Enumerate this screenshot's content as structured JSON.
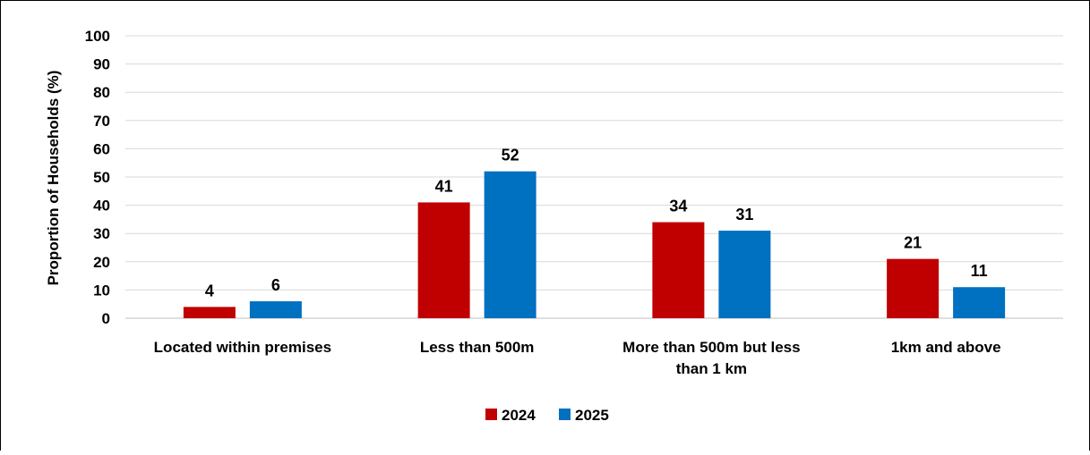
{
  "chart_data": {
    "type": "bar",
    "title": "",
    "xlabel": "",
    "ylabel": "Proportion of Households (%)",
    "ylim": [
      0,
      100
    ],
    "yticks": [
      "0",
      "10",
      "20",
      "30",
      "40",
      "50",
      "60",
      "70",
      "80",
      "90",
      "100"
    ],
    "grid": true,
    "legend_position": "bottom",
    "categories": [
      [
        "Located within premises"
      ],
      [
        "Less than 500m"
      ],
      [
        "More than 500m but less",
        "than 1 km"
      ],
      [
        "1km and above"
      ]
    ],
    "series": [
      {
        "name": "2024",
        "color": "#C00000",
        "values": [
          4,
          41,
          34,
          21
        ]
      },
      {
        "name": "2025",
        "color": "#0070C0",
        "values": [
          6,
          52,
          31,
          11
        ]
      }
    ]
  }
}
